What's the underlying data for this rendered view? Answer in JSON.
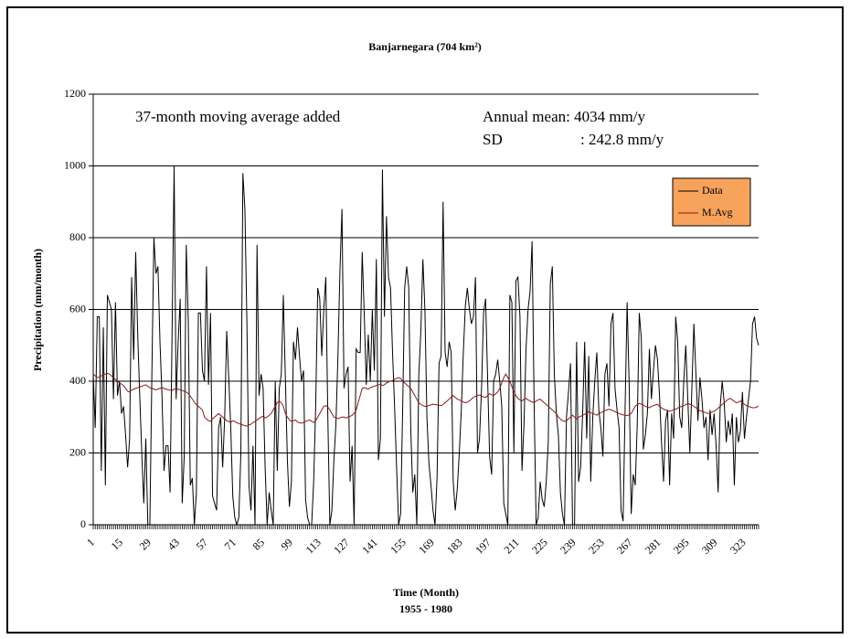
{
  "chart_data": {
    "type": "line",
    "title": "Banjarnegara (704 km²)",
    "x_label": "Time (Month)",
    "x_sublabel": "1955 - 1980",
    "y_label": "Precipitation (mm/month)",
    "annotations": [
      "37-month moving average added",
      "Annual mean: 4034 mm/y",
      "SD",
      ": 242.8 mm/y"
    ],
    "xlim": [
      1,
      330
    ],
    "xticks": [
      1,
      15,
      29,
      43,
      57,
      71,
      85,
      99,
      113,
      127,
      141,
      155,
      169,
      183,
      197,
      211,
      225,
      239,
      253,
      267,
      281,
      295,
      309,
      323
    ],
    "ylim": [
      0,
      1200
    ],
    "yticks": [
      0,
      200,
      400,
      600,
      800,
      1000,
      1200
    ],
    "grid": true,
    "legend": "upper right",
    "x": [
      1,
      2,
      3,
      4,
      5,
      6,
      7,
      8,
      9,
      10,
      11,
      12,
      13,
      14,
      15,
      16,
      17,
      18,
      19,
      20,
      21,
      22,
      23,
      24,
      25,
      26,
      27,
      28,
      29,
      30,
      31,
      32,
      33,
      34,
      35,
      36,
      37,
      38,
      39,
      40,
      41,
      42,
      43,
      44,
      45,
      46,
      47,
      48,
      49,
      50,
      51,
      52,
      53,
      54,
      55,
      56,
      57,
      58,
      59,
      60,
      61,
      62,
      63,
      64,
      65,
      66,
      67,
      68,
      69,
      70,
      71,
      72,
      73,
      74,
      75,
      76,
      77,
      78,
      79,
      80,
      81,
      82,
      83,
      84,
      85,
      86,
      87,
      88,
      89,
      90,
      91,
      92,
      93,
      94,
      95,
      96,
      97,
      98,
      99,
      100,
      101,
      102,
      103,
      104,
      105,
      106,
      107,
      108,
      109,
      110,
      111,
      112,
      113,
      114,
      115,
      116,
      117,
      118,
      119,
      120,
      121,
      122,
      123,
      124,
      125,
      126,
      127,
      128,
      129,
      130,
      131,
      132,
      133,
      134,
      135,
      136,
      137,
      138,
      139,
      140,
      141,
      142,
      143,
      144,
      145,
      146,
      147,
      148,
      149,
      150,
      151,
      152,
      153,
      154,
      155,
      156,
      157,
      158,
      159,
      160,
      161,
      162,
      163,
      164,
      165,
      166,
      167,
      168,
      169,
      170,
      171,
      172,
      173,
      174,
      175,
      176,
      177,
      178,
      179,
      180,
      181,
      182,
      183,
      184,
      185,
      186,
      187,
      188,
      189,
      190,
      191,
      192,
      193,
      194,
      195,
      196,
      197,
      198,
      199,
      200,
      201,
      202,
      203,
      204,
      205,
      206,
      207,
      208,
      209,
      210,
      211,
      212,
      213,
      214,
      215,
      216,
      217,
      218,
      219,
      220,
      221,
      222,
      223,
      224,
      225,
      226,
      227,
      228,
      229,
      230,
      231,
      232,
      233,
      234,
      235,
      236,
      237,
      238,
      239,
      240,
      241,
      242,
      243,
      244,
      245,
      246,
      247,
      248,
      249,
      250,
      251,
      252,
      253,
      254,
      255,
      256,
      257,
      258,
      259,
      260,
      261,
      262,
      263,
      264,
      265,
      266,
      267,
      268,
      269,
      270,
      271,
      272,
      273,
      274,
      275,
      276,
      277,
      278,
      279,
      280,
      281,
      282,
      283,
      284,
      285,
      286,
      287,
      288,
      289,
      290,
      291,
      292,
      293,
      294,
      295,
      296,
      297,
      298,
      299,
      300,
      301,
      302,
      303,
      304,
      305,
      306,
      307,
      308,
      309,
      310,
      311,
      312,
      313,
      314,
      315,
      316,
      317,
      318,
      319,
      320,
      321,
      322,
      323,
      324,
      325,
      326,
      327,
      328,
      329,
      330
    ],
    "series": [
      {
        "name": "Data",
        "color": "#000000",
        "values": [
          420,
          270,
          580,
          580,
          150,
          550,
          110,
          640,
          620,
          600,
          350,
          620,
          360,
          400,
          310,
          330,
          250,
          160,
          240,
          690,
          460,
          760,
          530,
          360,
          200,
          60,
          240,
          0,
          0,
          420,
          800,
          700,
          720,
          510,
          360,
          150,
          220,
          220,
          90,
          540,
          1000,
          350,
          510,
          630,
          60,
          190,
          780,
          570,
          110,
          130,
          0,
          90,
          590,
          590,
          430,
          400,
          720,
          390,
          590,
          80,
          60,
          40,
          270,
          300,
          160,
          300,
          540,
          410,
          270,
          80,
          20,
          0,
          20,
          200,
          980,
          880,
          560,
          110,
          40,
          220,
          0,
          780,
          360,
          420,
          380,
          160,
          0,
          90,
          40,
          0,
          400,
          150,
          380,
          420,
          640,
          410,
          180,
          50,
          120,
          510,
          460,
          550,
          470,
          400,
          430,
          70,
          20,
          0,
          0,
          120,
          330,
          660,
          630,
          470,
          600,
          690,
          300,
          0,
          40,
          180,
          280,
          470,
          710,
          880,
          380,
          420,
          440,
          120,
          220,
          0,
          490,
          480,
          480,
          760,
          590,
          390,
          530,
          400,
          600,
          430,
          740,
          180,
          240,
          990,
          580,
          860,
          690,
          660,
          480,
          330,
          160,
          0,
          30,
          320,
          660,
          720,
          660,
          270,
          90,
          140,
          0,
          420,
          540,
          740,
          600,
          300,
          170,
          110,
          40,
          0,
          130,
          450,
          470,
          900,
          480,
          440,
          510,
          480,
          120,
          40,
          100,
          200,
          320,
          480,
          610,
          660,
          600,
          560,
          580,
          690,
          200,
          240,
          380,
          590,
          630,
          410,
          190,
          140,
          400,
          420,
          460,
          400,
          330,
          60,
          30,
          0,
          640,
          620,
          200,
          680,
          690,
          580,
          150,
          280,
          490,
          600,
          650,
          790,
          340,
          0,
          20,
          120,
          70,
          50,
          120,
          230,
          670,
          720,
          420,
          310,
          250,
          90,
          30,
          0,
          300,
          370,
          450,
          0,
          0,
          510,
          120,
          160,
          310,
          510,
          240,
          470,
          120,
          300,
          400,
          480,
          320,
          270,
          190,
          420,
          450,
          330,
          560,
          590,
          380,
          320,
          270,
          40,
          10,
          330,
          620,
          390,
          30,
          140,
          110,
          280,
          590,
          520,
          210,
          250,
          310,
          490,
          350,
          430,
          500,
          460,
          360,
          230,
          120,
          290,
          320,
          110,
          310,
          240,
          580,
          510,
          300,
          270,
          400,
          500,
          350,
          200,
          380,
          560,
          420,
          290,
          410,
          350,
          270,
          300,
          180,
          320,
          250,
          310,
          220,
          90,
          330,
          400,
          340,
          230,
          290,
          250,
          310,
          110,
          300,
          230,
          260,
          370,
          240,
          300,
          350,
          400,
          560,
          580,
          520,
          500
        ]
      },
      {
        "name": "M.Avg",
        "color": "#8b1a1a",
        "values": [
          420,
          415,
          410,
          412,
          415,
          418,
          420,
          422,
          420,
          415,
          410,
          405,
          400,
          395,
          392,
          388,
          380,
          372,
          370,
          375,
          378,
          380,
          382,
          384,
          386,
          388,
          390,
          386,
          382,
          380,
          378,
          376,
          378,
          380,
          382,
          380,
          378,
          376,
          375,
          374,
          378,
          380,
          378,
          376,
          374,
          372,
          370,
          365,
          358,
          350,
          342,
          335,
          330,
          325,
          320,
          300,
          295,
          290,
          288,
          295,
          300,
          305,
          310,
          305,
          300,
          295,
          290,
          288,
          285,
          290,
          288,
          284,
          282,
          280,
          278,
          276,
          275,
          278,
          280,
          285,
          288,
          292,
          296,
          300,
          302,
          298,
          300,
          305,
          310,
          320,
          330,
          340,
          345,
          340,
          330,
          310,
          300,
          292,
          288,
          290,
          292,
          286,
          284,
          283,
          285,
          288,
          290,
          292,
          288,
          285,
          290,
          300,
          310,
          320,
          330,
          332,
          328,
          320,
          310,
          300,
          298,
          296,
          298,
          300,
          300,
          298,
          300,
          302,
          305,
          310,
          320,
          340,
          360,
          380,
          382,
          380,
          378,
          382,
          384,
          386,
          388,
          390,
          392,
          388,
          390,
          395,
          398,
          400,
          402,
          405,
          408,
          410,
          408,
          400,
          395,
          390,
          385,
          380,
          370,
          360,
          350,
          340,
          335,
          332,
          330,
          330,
          332,
          334,
          336,
          335,
          334,
          333,
          332,
          335,
          340,
          345,
          350,
          355,
          360,
          355,
          350,
          348,
          345,
          342,
          340,
          342,
          345,
          350,
          355,
          358,
          360,
          362,
          358,
          356,
          355,
          360,
          365,
          362,
          360,
          365,
          370,
          380,
          395,
          410,
          420,
          410,
          400,
          385,
          370,
          360,
          352,
          348,
          345,
          350,
          352,
          348,
          345,
          342,
          340,
          345,
          348,
          350,
          345,
          340,
          335,
          330,
          325,
          320,
          315,
          310,
          300,
          295,
          290,
          288,
          290,
          295,
          300,
          305,
          300,
          295,
          300,
          302,
          305,
          308,
          310,
          315,
          312,
          310,
          308,
          305,
          310,
          312,
          315,
          318,
          320,
          322,
          320,
          318,
          315,
          312,
          310,
          308,
          306,
          305,
          304,
          306,
          310,
          320,
          330,
          335,
          338,
          336,
          334,
          330,
          328,
          326,
          330,
          332,
          334,
          336,
          330,
          326,
          322,
          320,
          318,
          316,
          318,
          320,
          322,
          325,
          328,
          330,
          332,
          335,
          338,
          336,
          334,
          330,
          326,
          322,
          318,
          316,
          314,
          312,
          310,
          312,
          314,
          316,
          320,
          325,
          330,
          335,
          340,
          345,
          350,
          352,
          348,
          344,
          340,
          342,
          345,
          340,
          336,
          332,
          330,
          328,
          326,
          326,
          328,
          330
        ]
      }
    ]
  }
}
